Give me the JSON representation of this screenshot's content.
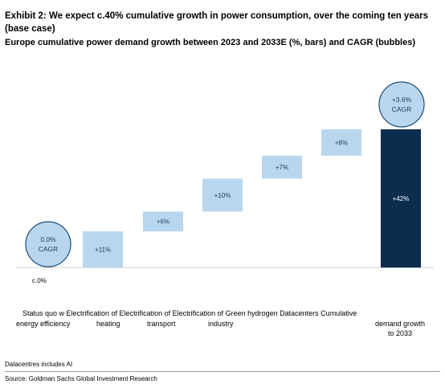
{
  "title": "Exhibit 2: We expect c.40% cumulative growth in power consumption, over the coming ten years (base case)",
  "subtitle": "Europe cumulative power demand growth between 2023 and 2033E (%, bars) and CAGR (bubbles)",
  "chart_data": {
    "type": "bar",
    "subtype": "waterfall",
    "categories": [
      "Status quo w energy efficiency",
      "Electrification of heating",
      "Electrification of transport",
      "Electrification of industry",
      "Green hydrogen",
      "Datacenters",
      "Cumulative demand growth to 2033"
    ],
    "values": [
      0,
      11,
      6,
      10,
      7,
      8,
      42
    ],
    "data_labels": [
      "",
      "+11%",
      "+6%",
      "+10%",
      "+7%",
      "+8%",
      "+42%"
    ],
    "bubbles": [
      {
        "category": "Status quo w energy efficiency",
        "value": 0.0,
        "lines": [
          "0.0%",
          "CAGR"
        ]
      },
      {
        "category": "Cumulative demand growth to 2033",
        "value": 3.6,
        "lines": [
          "+3.6%",
          "CAGR"
        ]
      }
    ],
    "base_label": "c.0%",
    "ylim": [
      0,
      42
    ],
    "grid": false,
    "colors": {
      "step": "#b8d7ef",
      "total": "#0d2d4f",
      "bubble_fill": "#b8d7ef",
      "bubble_stroke": "#1f4e79"
    }
  },
  "categories_display": {
    "row1": "Status quo w Electrification of Electrification of Electrification of Green hydrogen Datacenters Cumulative",
    "efficiency": "energy efficiency",
    "heating": "heating",
    "transport": "transport",
    "industry": "industry",
    "last_line1": "demand growth",
    "last_line2": "to 2033"
  },
  "note": "Datacentres includes AI",
  "source": "Source: Goldman Sachs Global Investment Research"
}
